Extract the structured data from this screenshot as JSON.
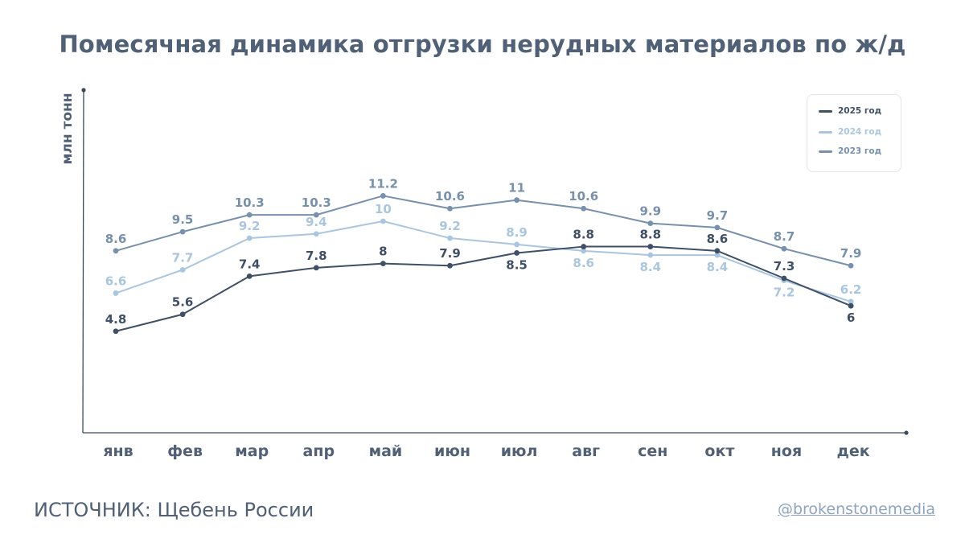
{
  "title": "Помесячная динамика отгрузки нерудных материалов по ж/д",
  "source": "ИСТОЧНИК: Щебень России",
  "handle": "@brokenstonemedia",
  "colors": {
    "text": "#4f6077",
    "axis": "#3c4a5e",
    "s2025": "#3e4f66",
    "s2024": "#a9c6e0",
    "s2023": "#7690ad"
  },
  "chart_data": {
    "type": "line",
    "title": "Помесячная динамика отгрузки нерудных материалов по ж/д",
    "xlabel": "",
    "ylabel": "млн тонн",
    "categories": [
      "янв",
      "фев",
      "мар",
      "апр",
      "май",
      "июн",
      "июл",
      "авг",
      "сен",
      "окт",
      "ноя",
      "дек"
    ],
    "ylim": [
      0,
      16
    ],
    "grid": false,
    "legend_position": "top-right",
    "series": [
      {
        "name": "2025 год",
        "color": "#3e4f66",
        "values": [
          4.8,
          5.6,
          7.4,
          7.8,
          8,
          7.9,
          8.5,
          8.8,
          8.8,
          8.6,
          7.3,
          6
        ],
        "label_side": [
          "above",
          "above",
          "above",
          "above",
          "above",
          "above",
          "below",
          "above",
          "above",
          "above",
          "above",
          "below"
        ]
      },
      {
        "name": "2024 год",
        "color": "#a9c6e0",
        "values": [
          6.6,
          7.7,
          9.2,
          9.4,
          10,
          9.2,
          8.9,
          8.6,
          8.4,
          8.4,
          7.2,
          6.2
        ],
        "label_side": [
          "above",
          "above",
          "above",
          "above",
          "above",
          "above",
          "above",
          "below",
          "below",
          "below",
          "below",
          "above"
        ]
      },
      {
        "name": "2023 год",
        "color": "#7690ad",
        "values": [
          8.6,
          9.5,
          10.3,
          10.3,
          11.2,
          10.6,
          11,
          10.6,
          9.9,
          9.7,
          8.7,
          7.9
        ],
        "label_side": [
          "above",
          "above",
          "above",
          "above",
          "above",
          "above",
          "above",
          "above",
          "above",
          "above",
          "above",
          "above"
        ]
      }
    ]
  }
}
